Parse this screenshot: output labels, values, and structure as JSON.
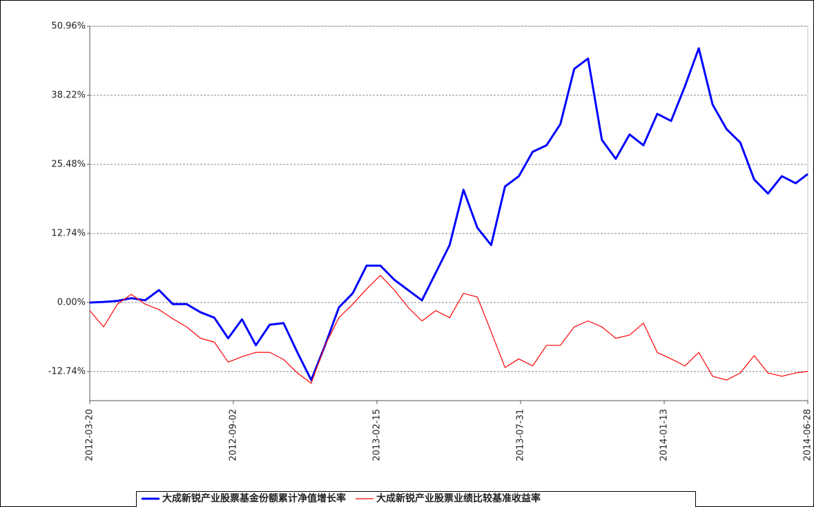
{
  "chart_data": {
    "type": "line",
    "x": [
      "2012-03-20",
      "2012-04-05",
      "2012-04-21",
      "2012-05-07",
      "2012-05-23",
      "2012-06-08",
      "2012-06-24",
      "2012-07-10",
      "2012-07-26",
      "2012-08-11",
      "2012-08-27",
      "2012-09-12",
      "2012-09-28",
      "2012-10-14",
      "2012-10-30",
      "2012-11-15",
      "2012-12-01",
      "2012-12-17",
      "2013-01-02",
      "2013-01-18",
      "2013-02-03",
      "2013-02-19",
      "2013-03-07",
      "2013-03-23",
      "2013-04-08",
      "2013-04-24",
      "2013-05-10",
      "2013-05-26",
      "2013-06-11",
      "2013-06-27",
      "2013-07-13",
      "2013-07-29",
      "2013-08-14",
      "2013-08-30",
      "2013-09-15",
      "2013-10-01",
      "2013-10-17",
      "2013-11-02",
      "2013-11-18",
      "2013-12-04",
      "2013-12-20",
      "2014-01-05",
      "2014-01-21",
      "2014-02-06",
      "2014-02-22",
      "2014-03-10",
      "2014-03-26",
      "2014-04-11",
      "2014-04-27",
      "2014-05-13",
      "2014-05-29",
      "2014-06-14",
      "2014-06-28"
    ],
    "series": [
      {
        "name": "大成新锐产业股票基金份额累计净值增长率",
        "color": "#0000ff",
        "width": 3,
        "values": [
          0,
          0.1,
          0.3,
          0.8,
          0.4,
          2.3,
          -0.3,
          -0.3,
          -1.8,
          -2.8,
          -6.6,
          -3.1,
          -7.9,
          -4.1,
          -3.8,
          -9.2,
          -14.3,
          -7.9,
          -0.9,
          1.7,
          6.8,
          6.8,
          4.2,
          2.3,
          0.4,
          5.5,
          10.6,
          20.8,
          13.8,
          10.6,
          21.4,
          23.3,
          27.8,
          29.0,
          32.9,
          43.1,
          45.0,
          30.0,
          26.5,
          31.0,
          29.0,
          34.8,
          33.5,
          39.9,
          46.9,
          36.5,
          32.0,
          29.5,
          22.7,
          20.1,
          23.3,
          22.0,
          23.7
        ]
      },
      {
        "name": "大成新锐产业股票业绩比较基准收益率",
        "color": "#ff0000",
        "width": 1.2,
        "values": [
          -1.5,
          -4.5,
          -0.3,
          1.5,
          -0.3,
          -1.3,
          -3.0,
          -4.5,
          -6.6,
          -7.3,
          -11.0,
          -10.0,
          -9.2,
          -9.2,
          -10.5,
          -13.0,
          -14.9,
          -7.9,
          -2.8,
          -0.3,
          2.5,
          5.0,
          2.3,
          -0.9,
          -3.4,
          -1.5,
          -2.8,
          1.7,
          1.0,
          -5.4,
          -12.0,
          -10.4,
          -11.7,
          -7.9,
          -7.9,
          -4.5,
          -3.4,
          -4.5,
          -6.6,
          -6.0,
          -3.8,
          -9.2,
          -10.4,
          -11.7,
          -9.2,
          -13.6,
          -14.3,
          -13.0,
          -9.8,
          -13.0,
          -13.6,
          -13.0,
          -12.7
        ]
      }
    ],
    "xlim": [
      "2012-03-20",
      "2014-06-28"
    ],
    "xticks": [
      "2012-03-20",
      "2012-09-02",
      "2013-02-15",
      "2013-07-31",
      "2014-01-13",
      "2014-06-28"
    ],
    "ylim": [
      -18.1,
      50.96
    ],
    "yticks": [
      {
        "value": -12.74,
        "label": "-12.74%"
      },
      {
        "value": 0,
        "label": "0.00%"
      },
      {
        "value": 12.74,
        "label": "12.74%"
      },
      {
        "value": 25.48,
        "label": "25.48%"
      },
      {
        "value": 38.22,
        "label": "38.22%"
      },
      {
        "value": 50.96,
        "label": "50.96%"
      }
    ],
    "grid": true,
    "legend": "bottom"
  }
}
